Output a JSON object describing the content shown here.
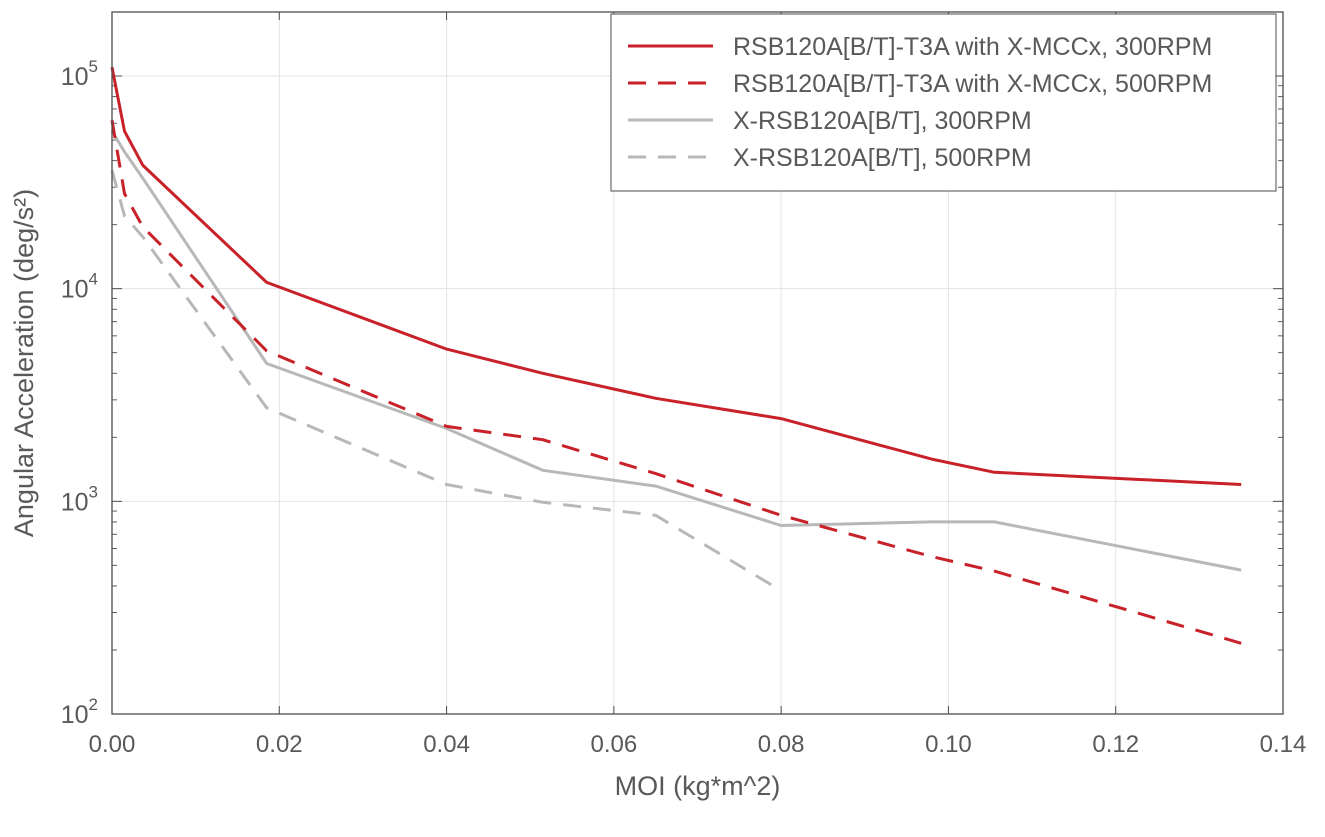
{
  "chart_data": {
    "type": "line",
    "title": "",
    "xlabel": "MOI (kg*m^2)",
    "ylabel": "Angular Acceleration (deg/s²)",
    "xlim": [
      0,
      0.14
    ],
    "ylim": [
      100,
      200000
    ],
    "yscale": "log",
    "grid": true,
    "legend_position": "top-right",
    "x_ticks": [
      "0.00",
      "0.02",
      "0.04",
      "0.06",
      "0.08",
      "0.10",
      "0.12",
      "0.14"
    ],
    "y_ticks": [
      {
        "value": 100,
        "base": "10",
        "exp": "2"
      },
      {
        "value": 1000,
        "base": "10",
        "exp": "3"
      },
      {
        "value": 10000,
        "base": "10",
        "exp": "4"
      },
      {
        "value": 100000,
        "base": "10",
        "exp": "5"
      }
    ],
    "series": [
      {
        "name": "RSB120A[B/T]-T3A with X-MCCx, 300RPM",
        "color": "#c8212a",
        "style": "solid",
        "x": [
          0.0,
          0.0015,
          0.0037,
          0.0185,
          0.04,
          0.0515,
          0.065,
          0.08,
          0.098,
          0.1055,
          0.135
        ],
        "y": [
          110000,
          55000,
          38000,
          10700,
          5200,
          4000,
          3050,
          2450,
          1580,
          1370,
          1200
        ]
      },
      {
        "name": "RSB120A[B/T]-T3A with X-MCCx, 500RPM",
        "color": "#c8212a",
        "style": "dashed",
        "x": [
          0.0,
          0.0015,
          0.0037,
          0.0185,
          0.04,
          0.0515,
          0.065,
          0.08,
          0.098,
          0.1055,
          0.135
        ],
        "y": [
          62000,
          28000,
          19500,
          5100,
          2250,
          1950,
          1350,
          860,
          550,
          470,
          215
        ]
      },
      {
        "name": "X-RSB120A[B/T], 300RPM",
        "color": "#b8b8b8",
        "style": "solid",
        "x": [
          0.0,
          0.0015,
          0.0037,
          0.0185,
          0.04,
          0.0515,
          0.065,
          0.08,
          0.098,
          0.1055,
          0.135
        ],
        "y": [
          55000,
          44000,
          33000,
          4450,
          2200,
          1400,
          1180,
          770,
          800,
          800,
          475
        ]
      },
      {
        "name": "X-RSB120A[B/T], 500RPM",
        "color": "#b8b8b8",
        "style": "dashed",
        "x": [
          0.0,
          0.0015,
          0.0037,
          0.0185,
          0.04,
          0.0515,
          0.065,
          0.08
        ],
        "y": [
          36000,
          22000,
          17500,
          2750,
          1200,
          990,
          860,
          380
        ]
      }
    ]
  }
}
